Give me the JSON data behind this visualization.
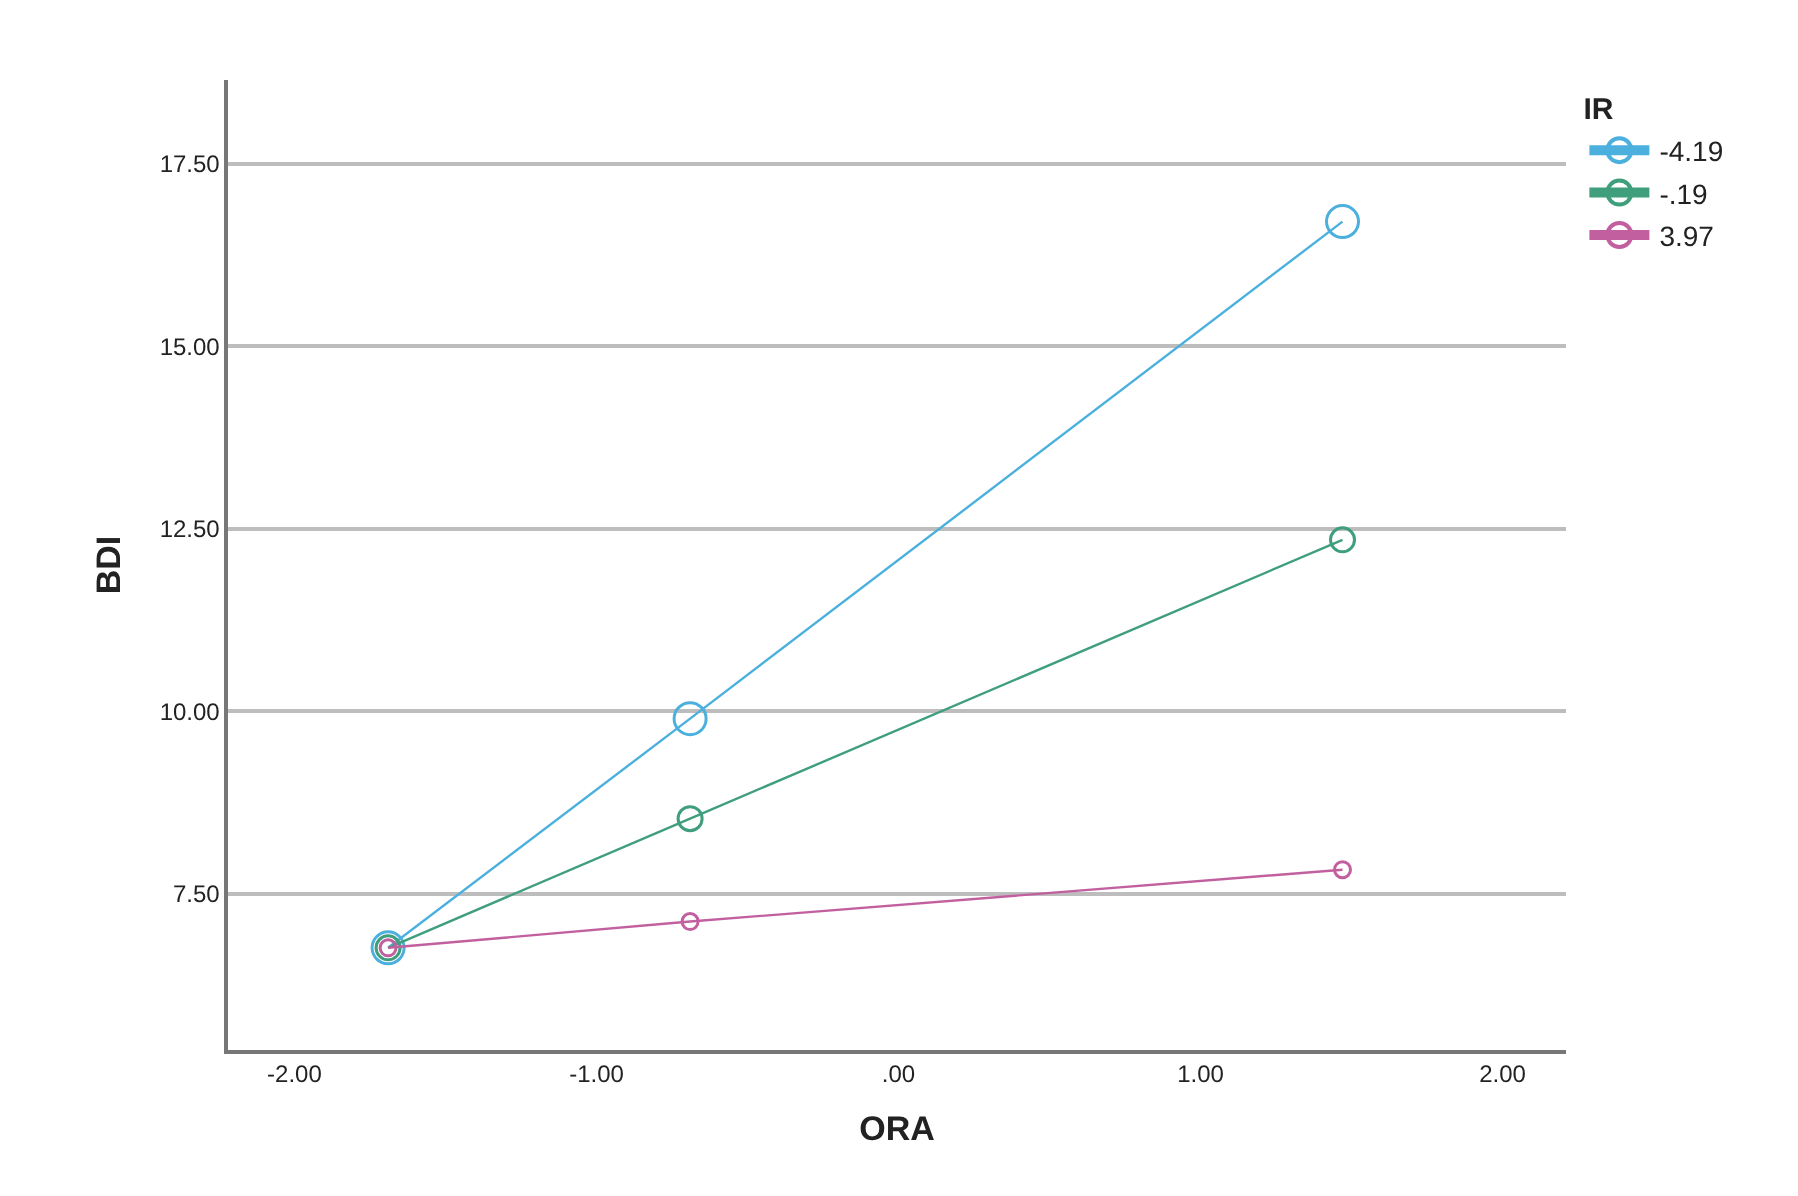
{
  "chart_data": {
    "type": "line",
    "xlabel": "ORA",
    "ylabel": "BDI",
    "legend_title": "IR",
    "legend": "top right",
    "marker": "circle",
    "line_style": "solid",
    "grid": "y",
    "x": [
      -1.69,
      -0.69,
      1.47
    ],
    "series": [
      {
        "name": "-4.19",
        "color": "#4cb0de",
        "values": [
          6.76,
          9.9,
          16.71
        ]
      },
      {
        "name": "-.19",
        "color": "#3f9f7c",
        "values": [
          6.76,
          8.53,
          12.35
        ]
      },
      {
        "name": "3.97",
        "color": "#c2609f",
        "values": [
          6.76,
          7.12,
          7.83
        ]
      }
    ],
    "xlim": [
      -2.22,
      2.21
    ],
    "ylim": [
      5.36,
      18.65
    ],
    "xticks": [
      {
        "value": -2,
        "label": "-2.00"
      },
      {
        "value": -1,
        "label": "-1.00"
      },
      {
        "value": 0,
        "label": ".00"
      },
      {
        "value": 1,
        "label": "1.00"
      },
      {
        "value": 2,
        "label": "2.00"
      }
    ],
    "yticks": [
      {
        "value": 7.5,
        "label": "7.50"
      },
      {
        "value": 10,
        "label": "10.00"
      },
      {
        "value": 12.5,
        "label": "12.50"
      },
      {
        "value": 15,
        "label": "15.00"
      },
      {
        "value": 17.5,
        "label": "17.50"
      }
    ]
  }
}
